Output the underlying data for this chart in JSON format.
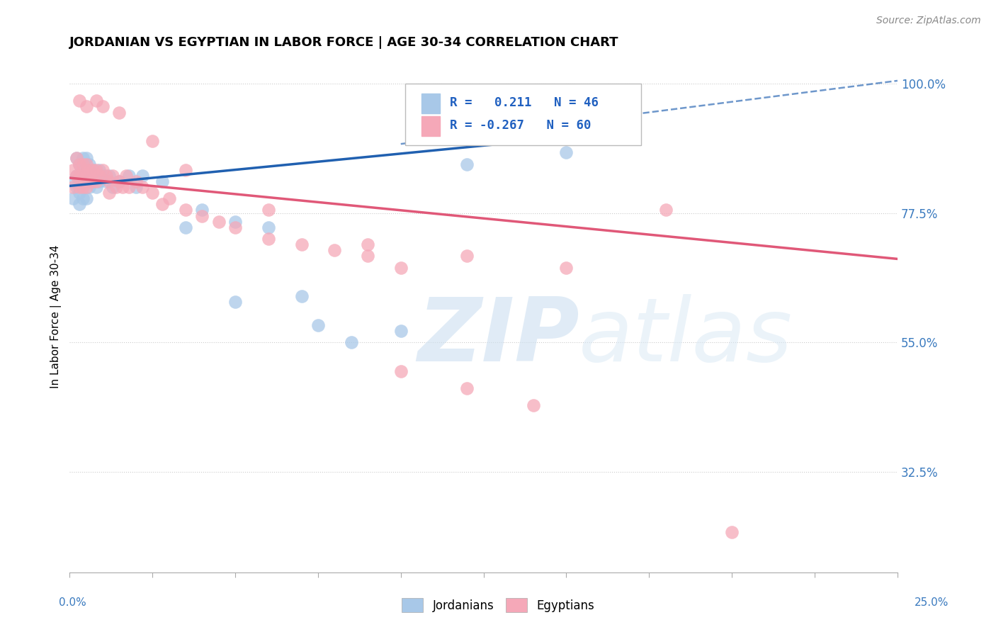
{
  "title": "JORDANIAN VS EGYPTIAN IN LABOR FORCE | AGE 30-34 CORRELATION CHART",
  "source": "Source: ZipAtlas.com",
  "ylabel": "In Labor Force | Age 30-34",
  "jordan_color": "#a8c8e8",
  "egypt_color": "#f5a8b8",
  "jordan_line_color": "#2060b0",
  "egypt_line_color": "#e05878",
  "xlim": [
    0.0,
    0.25
  ],
  "ylim": [
    0.15,
    1.04
  ],
  "yticks": [
    1.0,
    0.775,
    0.55,
    0.325
  ],
  "yticklabels": [
    "100.0%",
    "77.5%",
    "55.0%",
    "32.5%"
  ],
  "jordan_x": [
    0.001,
    0.001,
    0.002,
    0.002,
    0.002,
    0.003,
    0.003,
    0.003,
    0.003,
    0.004,
    0.004,
    0.004,
    0.004,
    0.005,
    0.005,
    0.005,
    0.005,
    0.006,
    0.006,
    0.006,
    0.007,
    0.007,
    0.008,
    0.008,
    0.009,
    0.009,
    0.01,
    0.011,
    0.012,
    0.013,
    0.015,
    0.018,
    0.02,
    0.022,
    0.028,
    0.035,
    0.04,
    0.05,
    0.06,
    0.07,
    0.05,
    0.075,
    0.085,
    0.1,
    0.12,
    0.15
  ],
  "jordan_y": [
    0.83,
    0.8,
    0.87,
    0.84,
    0.82,
    0.86,
    0.84,
    0.81,
    0.79,
    0.87,
    0.85,
    0.83,
    0.8,
    0.87,
    0.85,
    0.83,
    0.8,
    0.86,
    0.84,
    0.82,
    0.85,
    0.83,
    0.84,
    0.82,
    0.85,
    0.83,
    0.84,
    0.83,
    0.84,
    0.82,
    0.83,
    0.84,
    0.82,
    0.84,
    0.83,
    0.75,
    0.78,
    0.76,
    0.75,
    0.63,
    0.62,
    0.58,
    0.55,
    0.57,
    0.86,
    0.88
  ],
  "egypt_x": [
    0.001,
    0.001,
    0.002,
    0.002,
    0.003,
    0.003,
    0.003,
    0.004,
    0.004,
    0.004,
    0.005,
    0.005,
    0.005,
    0.006,
    0.006,
    0.007,
    0.007,
    0.008,
    0.008,
    0.009,
    0.01,
    0.011,
    0.012,
    0.012,
    0.013,
    0.014,
    0.015,
    0.016,
    0.017,
    0.018,
    0.02,
    0.022,
    0.025,
    0.028,
    0.03,
    0.035,
    0.04,
    0.045,
    0.05,
    0.06,
    0.07,
    0.08,
    0.09,
    0.1,
    0.003,
    0.005,
    0.008,
    0.01,
    0.015,
    0.025,
    0.035,
    0.06,
    0.09,
    0.12,
    0.15,
    0.18,
    0.1,
    0.12,
    0.14,
    0.2
  ],
  "egypt_y": [
    0.85,
    0.82,
    0.87,
    0.84,
    0.86,
    0.84,
    0.82,
    0.86,
    0.84,
    0.82,
    0.86,
    0.84,
    0.82,
    0.85,
    0.83,
    0.85,
    0.83,
    0.85,
    0.83,
    0.84,
    0.85,
    0.84,
    0.83,
    0.81,
    0.84,
    0.82,
    0.83,
    0.82,
    0.84,
    0.82,
    0.83,
    0.82,
    0.81,
    0.79,
    0.8,
    0.78,
    0.77,
    0.76,
    0.75,
    0.73,
    0.72,
    0.71,
    0.7,
    0.68,
    0.97,
    0.96,
    0.97,
    0.96,
    0.95,
    0.9,
    0.85,
    0.78,
    0.72,
    0.7,
    0.68,
    0.78,
    0.5,
    0.47,
    0.44,
    0.22
  ],
  "jordan_line_x": [
    0.0,
    0.13
  ],
  "jordan_line_y": [
    0.822,
    0.895
  ],
  "egypt_line_x": [
    0.0,
    0.25
  ],
  "egypt_line_y": [
    0.836,
    0.695
  ],
  "dash_line_x": [
    0.1,
    0.25
  ],
  "dash_line_y": [
    0.895,
    1.005
  ]
}
